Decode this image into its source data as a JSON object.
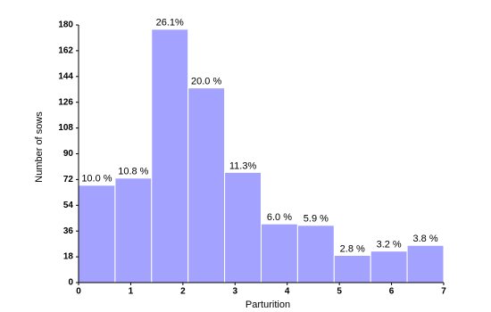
{
  "chart_data": {
    "type": "histogram",
    "x_label": "Parturition",
    "y_label": "Number of sows",
    "bins": [
      0,
      0.7,
      1.4,
      2.1,
      2.8,
      3.5,
      4.2,
      4.9,
      5.6,
      6.3,
      7
    ],
    "values": [
      68,
      73,
      177,
      136,
      77,
      41,
      40,
      19,
      22,
      26
    ],
    "annotations": [
      "10.0 %",
      "10.8 %",
      "26.1%",
      "20.0 %",
      "11.3%",
      "6.0 %",
      "5.9 %",
      "2.8 %",
      "3.2 %",
      "3.8 %"
    ],
    "color": "#a3a3ff",
    "xlim": [
      0,
      7
    ],
    "xticks": [
      0,
      1,
      2,
      3,
      4,
      5,
      6,
      7
    ],
    "ylim": [
      0,
      180
    ],
    "yticks": [
      0,
      18,
      36,
      54,
      72,
      90,
      108,
      126,
      144,
      162,
      180
    ],
    "grid": false
  }
}
